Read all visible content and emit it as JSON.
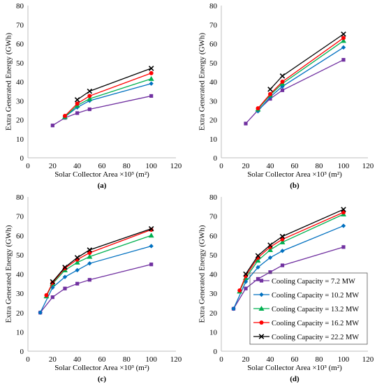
{
  "chart_data": [
    {
      "panel_label": "(a)",
      "type": "line",
      "xlabel": "Solar Collector Area ×10³ (m²)",
      "ylabel": "Extra Generated Energy (GWh)",
      "xlim": [
        0,
        120
      ],
      "ylim": [
        0,
        80
      ],
      "xticks": [
        0,
        20,
        40,
        60,
        80,
        100,
        120
      ],
      "yticks": [
        0,
        10,
        20,
        30,
        40,
        50,
        60,
        70,
        80
      ],
      "grid": false,
      "series": [
        {
          "color": "#7030A0",
          "marker": "square",
          "x": [
            20,
            30,
            40,
            50,
            100
          ],
          "y": [
            17,
            21,
            23.5,
            25.5,
            32.5
          ]
        },
        {
          "color": "#0070C0",
          "marker": "diamond",
          "x": [
            30,
            40,
            50,
            100
          ],
          "y": [
            21.5,
            26.5,
            30,
            39
          ]
        },
        {
          "color": "#00B050",
          "marker": "triangle",
          "x": [
            30,
            40,
            50,
            100
          ],
          "y": [
            21.5,
            27.5,
            31,
            41.5
          ]
        },
        {
          "color": "#FF0000",
          "marker": "circle",
          "x": [
            30,
            40,
            50,
            100
          ],
          "y": [
            22,
            28.5,
            32.5,
            44.5
          ]
        },
        {
          "color": "#000000",
          "marker": "cross",
          "x": [
            40,
            50,
            100
          ],
          "y": [
            30.5,
            35,
            47
          ]
        }
      ]
    },
    {
      "panel_label": "(b)",
      "type": "line",
      "xlabel": "Solar Collector Area ×10³ (m²)",
      "ylabel": "Extra Generated Energy (GWh)",
      "xlim": [
        0,
        120
      ],
      "ylim": [
        0,
        80
      ],
      "xticks": [
        0,
        20,
        40,
        60,
        80,
        100,
        120
      ],
      "yticks": [
        0,
        10,
        20,
        30,
        40,
        50,
        60,
        70,
        80
      ],
      "grid": false,
      "series": [
        {
          "color": "#7030A0",
          "marker": "square",
          "x": [
            20,
            30,
            40,
            50,
            100
          ],
          "y": [
            18,
            25,
            31,
            35.5,
            51.5
          ]
        },
        {
          "color": "#0070C0",
          "marker": "diamond",
          "x": [
            30,
            40,
            50,
            100
          ],
          "y": [
            24.5,
            32,
            37.5,
            58
          ]
        },
        {
          "color": "#00B050",
          "marker": "triangle",
          "x": [
            30,
            40,
            50,
            100
          ],
          "y": [
            25.5,
            33,
            39,
            61.5
          ]
        },
        {
          "color": "#FF0000",
          "marker": "circle",
          "x": [
            30,
            40,
            50,
            100
          ],
          "y": [
            26,
            33.5,
            40,
            63
          ]
        },
        {
          "color": "#000000",
          "marker": "cross",
          "x": [
            40,
            50,
            100
          ],
          "y": [
            36,
            43,
            65
          ]
        }
      ]
    },
    {
      "panel_label": "(c)",
      "type": "line",
      "xlabel": "Solar Collector Area ×10³ (m²)",
      "ylabel": "Extra Generated Energy (GWh)",
      "xlim": [
        0,
        120
      ],
      "ylim": [
        0,
        80
      ],
      "xticks": [
        0,
        20,
        40,
        60,
        80,
        100,
        120
      ],
      "yticks": [
        0,
        10,
        20,
        30,
        40,
        50,
        60,
        70,
        80
      ],
      "grid": false,
      "series": [
        {
          "color": "#7030A0",
          "marker": "square",
          "x": [
            10,
            20,
            30,
            40,
            50,
            100
          ],
          "y": [
            20,
            28,
            32.5,
            35,
            37,
            45
          ]
        },
        {
          "color": "#0070C0",
          "marker": "diamond",
          "x": [
            10,
            20,
            30,
            40,
            50,
            100
          ],
          "y": [
            20,
            33,
            38.5,
            42,
            45.5,
            54.5
          ]
        },
        {
          "color": "#00B050",
          "marker": "triangle",
          "x": [
            15,
            20,
            30,
            40,
            50,
            100
          ],
          "y": [
            28.5,
            35,
            42,
            46,
            49,
            60
          ]
        },
        {
          "color": "#FF0000",
          "marker": "circle",
          "x": [
            15,
            20,
            30,
            40,
            50,
            100
          ],
          "y": [
            29,
            35.5,
            43,
            47.5,
            51,
            63
          ]
        },
        {
          "color": "#000000",
          "marker": "cross",
          "x": [
            20,
            30,
            40,
            50,
            100
          ],
          "y": [
            36,
            43.5,
            48.5,
            52.5,
            63.5
          ]
        }
      ]
    },
    {
      "panel_label": "(d)",
      "type": "line",
      "xlabel": "Solar Collector Area ×10³ (m²)",
      "ylabel": "Extra Generated Energy (GWh)",
      "xlim": [
        0,
        120
      ],
      "ylim": [
        0,
        80
      ],
      "xticks": [
        0,
        20,
        40,
        60,
        80,
        100,
        120
      ],
      "yticks": [
        0,
        10,
        20,
        30,
        40,
        50,
        60,
        70,
        80
      ],
      "grid": false,
      "legend": "lower-right",
      "series": [
        {
          "name": "Cooling Capacity = 7.2 MW",
          "color": "#7030A0",
          "marker": "square",
          "x": [
            10,
            20,
            30,
            40,
            50,
            100
          ],
          "y": [
            22,
            32.5,
            37.5,
            41,
            44.5,
            54
          ]
        },
        {
          "name": "Cooling Capacity = 10.2 MW",
          "color": "#0070C0",
          "marker": "diamond",
          "x": [
            10,
            20,
            30,
            40,
            50,
            100
          ],
          "y": [
            22,
            36,
            43.5,
            48.5,
            52,
            65
          ]
        },
        {
          "name": "Cooling Capacity = 13.2 MW",
          "color": "#00B050",
          "marker": "triangle",
          "x": [
            15,
            20,
            30,
            40,
            50,
            100
          ],
          "y": [
            31,
            38,
            47,
            52.5,
            56.5,
            71
          ]
        },
        {
          "name": "Cooling Capacity = 16.2 MW",
          "color": "#FF0000",
          "marker": "circle",
          "x": [
            15,
            20,
            30,
            40,
            50,
            100
          ],
          "y": [
            31.5,
            39,
            48.5,
            54,
            58,
            72
          ]
        },
        {
          "name": "Cooling Capacity = 22.2 MW",
          "color": "#000000",
          "marker": "cross",
          "x": [
            20,
            30,
            40,
            50,
            100
          ],
          "y": [
            40,
            49.5,
            55,
            59.5,
            73.5
          ]
        }
      ]
    }
  ]
}
